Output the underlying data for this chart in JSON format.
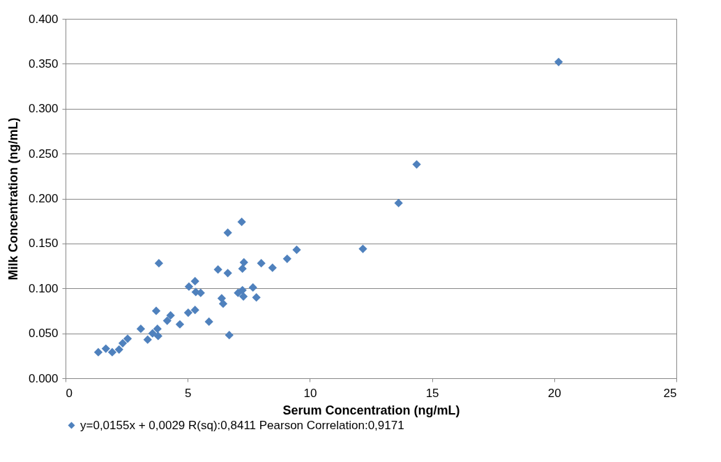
{
  "chart_data": {
    "type": "scatter",
    "xlabel": "Serum Concentration (ng/mL)",
    "ylabel": "Milk Concentration (ng/mL)",
    "x": [
      1.34,
      1.65,
      1.91,
      2.19,
      2.34,
      2.54,
      3.08,
      3.36,
      3.56,
      3.71,
      3.82,
      3.76,
      3.79,
      4.16,
      4.3,
      4.68,
      5.02,
      5.3,
      5.05,
      5.3,
      5.33,
      5.53,
      5.87,
      6.24,
      6.39,
      6.45,
      6.64,
      6.64,
      6.7,
      7.06,
      7.28,
      7.21,
      7.24,
      7.3,
      7.24,
      7.67,
      7.81,
      8.01,
      8.47,
      9.07,
      9.46,
      12.17,
      13.63,
      14.37,
      20.18
    ],
    "series": [
      {
        "name": "y=0,0155x + 0,0029    R(sq):0,8411    Pearson Correlation:0,9171",
        "color": "#4f81bd",
        "values": [
          0.029,
          0.033,
          0.029,
          0.032,
          0.039,
          0.044,
          0.055,
          0.043,
          0.05,
          0.075,
          0.128,
          0.055,
          0.047,
          0.064,
          0.07,
          0.06,
          0.073,
          0.076,
          0.102,
          0.108,
          0.096,
          0.095,
          0.063,
          0.121,
          0.089,
          0.083,
          0.162,
          0.117,
          0.048,
          0.095,
          0.091,
          0.174,
          0.122,
          0.129,
          0.098,
          0.101,
          0.09,
          0.128,
          0.123,
          0.133,
          0.143,
          0.144,
          0.195,
          0.238,
          0.352
        ]
      }
    ],
    "xlim": [
      0,
      25
    ],
    "xticks": [
      0,
      5,
      10,
      15,
      20,
      25
    ],
    "ylim": [
      0,
      0.4
    ],
    "yticks": [
      {
        "value": 0,
        "label": "0.000"
      },
      {
        "value": 0.05,
        "label": "0.050"
      },
      {
        "value": 0.1,
        "label": "0.100"
      },
      {
        "value": 0.15,
        "label": "0.150"
      },
      {
        "value": 0.2,
        "label": "0.200"
      },
      {
        "value": 0.25,
        "label": "0.250"
      },
      {
        "value": 0.3,
        "label": "0.300"
      },
      {
        "value": 0.35,
        "label": "0.350"
      },
      {
        "value": 0.4,
        "label": "0.400"
      }
    ],
    "grid": "y",
    "legend": "bottom",
    "marker": "diamond"
  }
}
